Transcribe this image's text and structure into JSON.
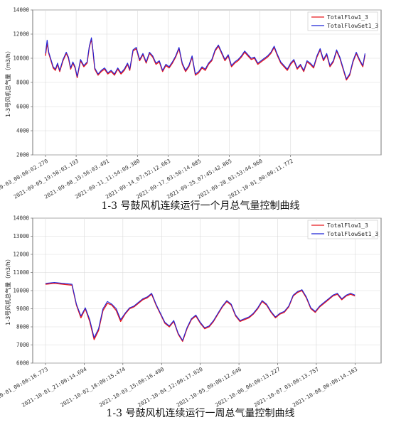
{
  "colors": {
    "flow": "#e8191e",
    "set": "#1f24d8",
    "grid": "#d9d9d9",
    "axis": "#555555"
  },
  "chart_data": [
    {
      "type": "line",
      "title": "1-3 号鼓风机连续运行一个月总气量控制曲线",
      "ylabel": "1-3号风机总气量（m3/h）",
      "ylim": [
        2000,
        14000
      ],
      "yticks": [
        "2000",
        "4000",
        "6000",
        "8000",
        "10000",
        "12000",
        "14000"
      ],
      "xlim": [
        0,
        29.5
      ],
      "x_unit": "days since 2021-09-03 00:00:02.270",
      "xticks": [
        {
          "x": 0.0,
          "label": "2021-09-03_00:00:02.270"
        },
        {
          "x": 2.8,
          "label": "2021-09-05_19:58:03.193"
        },
        {
          "x": 5.6,
          "label": "2021-09-08_15:56:03.491"
        },
        {
          "x": 8.4,
          "label": "2021-09-11_11:54:09.380"
        },
        {
          "x": 11.2,
          "label": "2021-09-14_07:52:12.663"
        },
        {
          "x": 14.0,
          "label": "2021-09-17_03:50:14.085"
        },
        {
          "x": 16.8,
          "label": "2021-09-25_07:45:42.865"
        },
        {
          "x": 19.6,
          "label": "2021-09-28_03:53:44.960"
        },
        {
          "x": 22.4,
          "label": "2021-10-01_00:00:11.772"
        }
      ],
      "legend": "top-right",
      "grid": true,
      "series": [
        {
          "name": "TotalFlow1_3",
          "color": "#e8191e",
          "x": [
            0,
            0.15,
            0.3,
            0.5,
            0.7,
            0.9,
            1.1,
            1.3,
            1.6,
            1.9,
            2.1,
            2.3,
            2.5,
            2.7,
            2.9,
            3.2,
            3.5,
            3.8,
            4.0,
            4.2,
            4.35,
            4.5,
            4.8,
            5.1,
            5.4,
            5.7,
            6.0,
            6.3,
            6.6,
            6.9,
            7.2,
            7.5,
            7.7,
            8.0,
            8.3,
            8.6,
            8.9,
            9.2,
            9.5,
            9.8,
            10.1,
            10.4,
            10.7,
            11.0,
            11.3,
            11.6,
            11.9,
            12.2,
            12.5,
            12.8,
            13.1,
            13.4,
            13.7,
            14.0,
            14.3,
            14.6,
            14.9,
            15.2,
            15.5,
            15.8,
            16.1,
            16.4,
            16.7,
            17.0,
            17.3,
            17.6,
            17.9,
            18.2,
            18.5,
            18.8,
            19.1,
            19.4,
            19.7,
            20.0,
            20.3,
            20.6,
            20.9,
            21.2,
            21.5,
            21.8,
            22.1,
            22.4,
            22.7,
            23.0,
            23.3,
            23.6,
            23.9,
            24.2,
            24.5,
            24.8,
            25.1,
            25.4,
            25.7,
            26.0,
            26.3,
            26.6,
            26.9,
            27.2,
            27.5,
            27.8,
            28.1,
            28.4,
            28.7,
            29.0,
            29.2
          ],
          "y": [
            10200,
            11300,
            10400,
            9800,
            9200,
            9000,
            9500,
            8900,
            9800,
            10400,
            10000,
            9100,
            9600,
            9200,
            8400,
            9800,
            9300,
            9600,
            10900,
            11600,
            10500,
            9100,
            8600,
            8900,
            9100,
            8700,
            8900,
            8600,
            9100,
            8700,
            9000,
            9500,
            9000,
            10600,
            10800,
            9800,
            10300,
            9600,
            10400,
            10100,
            9500,
            9700,
            8900,
            9400,
            9200,
            9600,
            10100,
            10800,
            9500,
            8900,
            9300,
            10100,
            8600,
            8800,
            9200,
            9000,
            9500,
            9800,
            10600,
            11000,
            10400,
            9800,
            10200,
            9300,
            9600,
            9800,
            10100,
            10500,
            10200,
            9900,
            10000,
            9500,
            9700,
            9900,
            10100,
            10400,
            10900,
            10200,
            9600,
            9300,
            9000,
            9500,
            9800,
            9100,
            9400,
            8900,
            9700,
            9500,
            9200,
            10100,
            10700,
            9800,
            10300,
            9300,
            9700,
            10600,
            10000,
            9100,
            8200,
            8600,
            9700,
            10400,
            9800,
            9300,
            10300
          ]
        },
        {
          "name": "TotalFlowSet1_3",
          "color": "#1f24d8",
          "x": [
            0,
            0.15,
            0.3,
            0.5,
            0.7,
            0.9,
            1.1,
            1.3,
            1.6,
            1.9,
            2.1,
            2.3,
            2.5,
            2.7,
            2.9,
            3.2,
            3.5,
            3.8,
            4.0,
            4.2,
            4.35,
            4.5,
            4.8,
            5.1,
            5.4,
            5.7,
            6.0,
            6.3,
            6.6,
            6.9,
            7.2,
            7.5,
            7.7,
            8.0,
            8.3,
            8.6,
            8.9,
            9.2,
            9.5,
            9.8,
            10.1,
            10.4,
            10.7,
            11.0,
            11.3,
            11.6,
            11.9,
            12.2,
            12.5,
            12.8,
            13.1,
            13.4,
            13.7,
            14.0,
            14.3,
            14.6,
            14.9,
            15.2,
            15.5,
            15.8,
            16.1,
            16.4,
            16.7,
            17.0,
            17.3,
            17.6,
            17.9,
            18.2,
            18.5,
            18.8,
            19.1,
            19.4,
            19.7,
            20.0,
            20.3,
            20.6,
            20.9,
            21.2,
            21.5,
            21.8,
            22.1,
            22.4,
            22.7,
            23.0,
            23.3,
            23.6,
            23.9,
            24.2,
            24.5,
            24.8,
            25.1,
            25.4,
            25.7,
            26.0,
            26.3,
            26.6,
            26.9,
            27.2,
            27.5,
            27.8,
            28.1,
            28.4,
            28.7,
            29.0,
            29.2
          ],
          "y": [
            10400,
            11500,
            10500,
            9900,
            9300,
            9100,
            9600,
            9000,
            9900,
            10500,
            10100,
            9200,
            9700,
            9300,
            8500,
            9900,
            9400,
            9700,
            11000,
            11700,
            10600,
            9200,
            8700,
            9000,
            9200,
            8800,
            9000,
            8700,
            9200,
            8800,
            9100,
            9600,
            9100,
            10700,
            10900,
            9900,
            10400,
            9700,
            10500,
            10200,
            9600,
            9800,
            9000,
            9500,
            9300,
            9700,
            10200,
            10900,
            9600,
            9000,
            9400,
            10200,
            8700,
            8900,
            9300,
            9100,
            9600,
            9900,
            10700,
            11100,
            10500,
            9900,
            10300,
            9400,
            9700,
            9900,
            10200,
            10600,
            10300,
            10000,
            10100,
            9600,
            9800,
            10000,
            10200,
            10500,
            11000,
            10300,
            9700,
            9400,
            9100,
            9600,
            9900,
            9200,
            9500,
            9000,
            9800,
            9600,
            9300,
            10200,
            10800,
            9900,
            10400,
            9400,
            9800,
            10700,
            10100,
            9200,
            8300,
            8700,
            9800,
            10500,
            9900,
            9400,
            10400
          ]
        }
      ]
    },
    {
      "type": "line",
      "title": "1-3 号鼓风机连续运行一周总气量控制曲线",
      "ylabel": "1-3号风机总气量（m3/h）",
      "ylim": [
        6000,
        14000
      ],
      "yticks": [
        "6000",
        "7000",
        "8000",
        "9000",
        "10000",
        "11000",
        "12000",
        "13000",
        "14000"
      ],
      "xlim": [
        0,
        7.3
      ],
      "x_unit": "days since 2021-10-01 00:00:16.773",
      "xticks": [
        {
          "x": 0.0,
          "label": "2021-10-01_00:00:16.773"
        },
        {
          "x": 0.875,
          "label": "2021-10-01_21:00:14.694"
        },
        {
          "x": 1.75,
          "label": "2021-10-02_18:00:15.474"
        },
        {
          "x": 2.625,
          "label": "2021-10-03_15:00:16.490"
        },
        {
          "x": 3.5,
          "label": "2021-10-04_12:00:17.020"
        },
        {
          "x": 4.375,
          "label": "2021-10-05_09:00:12.646"
        },
        {
          "x": 5.25,
          "label": "2021-10-06_06:00:13.227"
        },
        {
          "x": 6.125,
          "label": "2021-10-07_03:00:13.757"
        },
        {
          "x": 7.0,
          "label": "2021-10-08_00:00:14.163"
        }
      ],
      "legend": "top-right",
      "grid": true,
      "series": [
        {
          "name": "TotalFlow1_3",
          "color": "#e8191e",
          "x": [
            0,
            0.2,
            0.4,
            0.6,
            0.7,
            0.8,
            0.9,
            1.0,
            1.1,
            1.2,
            1.3,
            1.4,
            1.5,
            1.6,
            1.7,
            1.8,
            1.9,
            2.0,
            2.1,
            2.2,
            2.3,
            2.4,
            2.5,
            2.6,
            2.7,
            2.8,
            2.9,
            3.0,
            3.1,
            3.2,
            3.3,
            3.4,
            3.5,
            3.6,
            3.7,
            3.8,
            3.9,
            4.0,
            4.1,
            4.2,
            4.3,
            4.4,
            4.5,
            4.6,
            4.7,
            4.8,
            4.9,
            5.0,
            5.1,
            5.2,
            5.3,
            5.4,
            5.5,
            5.6,
            5.7,
            5.8,
            5.9,
            6.0,
            6.1,
            6.2,
            6.3,
            6.4,
            6.5,
            6.6,
            6.7,
            6.8,
            6.9,
            7.0
          ],
          "y": [
            10350,
            10400,
            10350,
            10300,
            9200,
            8500,
            9000,
            8300,
            7300,
            7800,
            8900,
            9300,
            9200,
            8900,
            8300,
            8700,
            9000,
            9100,
            9300,
            9500,
            9600,
            9800,
            9200,
            8700,
            8200,
            8000,
            8300,
            7600,
            7200,
            7900,
            8400,
            8600,
            8200,
            7900,
            8000,
            8300,
            8700,
            9100,
            9400,
            9200,
            8600,
            8300,
            8400,
            8500,
            8700,
            9000,
            9400,
            9200,
            8800,
            8500,
            8700,
            8800,
            9100,
            9700,
            9900,
            10000,
            9600,
            9000,
            8800,
            9100,
            9300,
            9500,
            9700,
            9800,
            9500,
            9700,
            9800,
            9700
          ]
        },
        {
          "name": "TotalFlowSet1_3",
          "color": "#1f24d8",
          "x": [
            0,
            0.2,
            0.4,
            0.6,
            0.7,
            0.8,
            0.9,
            1.0,
            1.1,
            1.2,
            1.3,
            1.4,
            1.5,
            1.6,
            1.7,
            1.8,
            1.9,
            2.0,
            2.1,
            2.2,
            2.3,
            2.4,
            2.5,
            2.6,
            2.7,
            2.8,
            2.9,
            3.0,
            3.1,
            3.2,
            3.3,
            3.4,
            3.5,
            3.6,
            3.7,
            3.8,
            3.9,
            4.0,
            4.1,
            4.2,
            4.3,
            4.4,
            4.5,
            4.6,
            4.7,
            4.8,
            4.9,
            5.0,
            5.1,
            5.2,
            5.3,
            5.4,
            5.5,
            5.6,
            5.7,
            5.8,
            5.9,
            6.0,
            6.1,
            6.2,
            6.3,
            6.4,
            6.5,
            6.6,
            6.7,
            6.8,
            6.9,
            7.0
          ],
          "y": [
            10400,
            10450,
            10400,
            10350,
            9250,
            8600,
            9050,
            8400,
            7400,
            7900,
            9000,
            9400,
            9250,
            9000,
            8400,
            8750,
            9050,
            9150,
            9350,
            9550,
            9650,
            9850,
            9250,
            8750,
            8250,
            8050,
            8350,
            7650,
            7250,
            7950,
            8450,
            8650,
            8250,
            7950,
            8050,
            8350,
            8750,
            9150,
            9450,
            9250,
            8650,
            8350,
            8450,
            8550,
            8750,
            9050,
            9450,
            9250,
            8850,
            8550,
            8750,
            8850,
            9150,
            9750,
            9950,
            10050,
            9650,
            9050,
            8850,
            9150,
            9350,
            9550,
            9750,
            9850,
            9550,
            9750,
            9850,
            9750
          ]
        }
      ]
    }
  ]
}
